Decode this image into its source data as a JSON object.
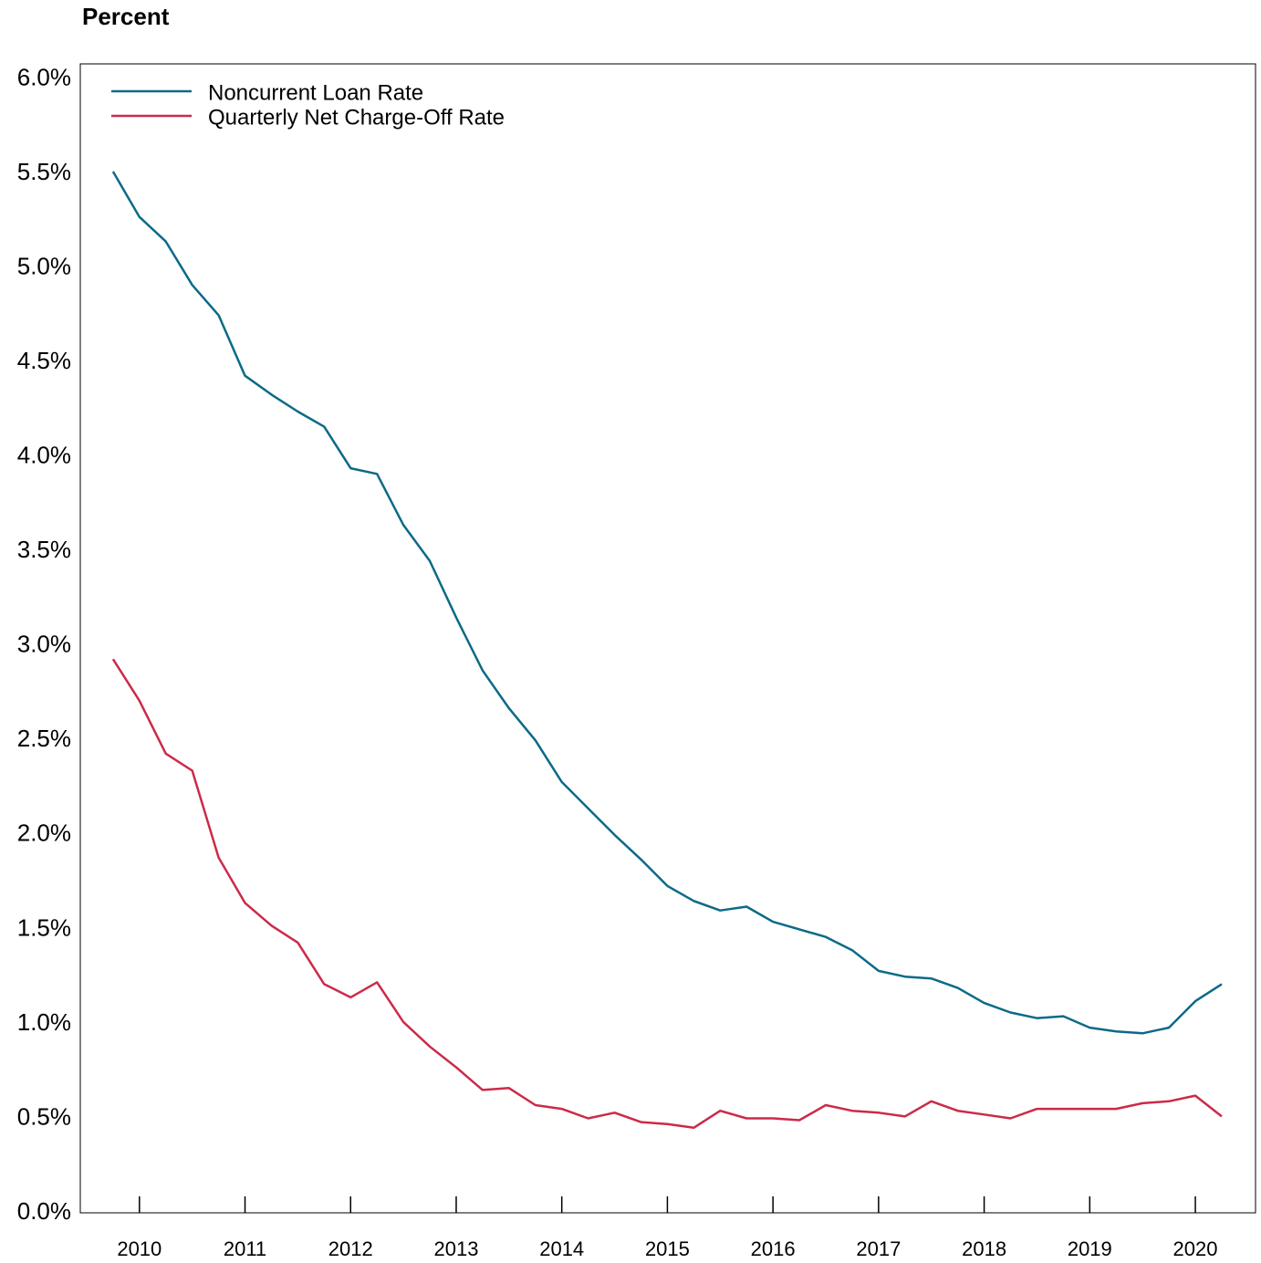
{
  "chart_data": {
    "type": "line",
    "title": "Percent",
    "x": [
      2009.75,
      2010,
      2010.25,
      2010.5,
      2010.75,
      2011,
      2011.25,
      2011.5,
      2011.75,
      2012,
      2012.25,
      2012.5,
      2012.75,
      2013,
      2013.25,
      2013.5,
      2013.75,
      2014,
      2014.25,
      2014.5,
      2014.75,
      2015,
      2015.25,
      2015.5,
      2015.75,
      2016,
      2016.25,
      2016.5,
      2016.75,
      2017,
      2017.25,
      2017.5,
      2017.75,
      2018,
      2018.25,
      2018.5,
      2018.75,
      2019,
      2019.25,
      2019.5,
      2019.75,
      2020,
      2020.25
    ],
    "series": [
      {
        "name": "Noncurrent Loan Rate",
        "color": "#0b6a87",
        "values": [
          5.51,
          5.27,
          5.14,
          4.91,
          4.75,
          4.43,
          4.33,
          4.24,
          4.16,
          3.94,
          3.91,
          3.64,
          3.45,
          3.15,
          2.87,
          2.67,
          2.5,
          2.28,
          2.14,
          2.0,
          1.87,
          1.73,
          1.65,
          1.6,
          1.62,
          1.54,
          1.5,
          1.46,
          1.39,
          1.28,
          1.25,
          1.24,
          1.19,
          1.11,
          1.06,
          1.03,
          1.04,
          0.98,
          0.96,
          0.95,
          0.98,
          1.12,
          1.21
        ]
      },
      {
        "name": "Quarterly Net Charge-Off Rate",
        "color": "#cc2a49",
        "values": [
          2.93,
          2.71,
          2.43,
          2.34,
          1.88,
          1.64,
          1.52,
          1.43,
          1.21,
          1.14,
          1.22,
          1.01,
          0.88,
          0.77,
          0.65,
          0.66,
          0.57,
          0.55,
          0.5,
          0.53,
          0.48,
          0.47,
          0.45,
          0.54,
          0.5,
          0.5,
          0.49,
          0.57,
          0.54,
          0.53,
          0.51,
          0.59,
          0.54,
          0.52,
          0.5,
          0.55,
          0.55,
          0.55,
          0.55,
          0.58,
          0.59,
          0.62,
          0.51
        ]
      }
    ],
    "xlim": [
      2009.44,
      2020.57
    ],
    "xticks": [
      2010,
      2011,
      2012,
      2013,
      2014,
      2015,
      2016,
      2017,
      2018,
      2019,
      2020
    ],
    "ylim": [
      0,
      6.08
    ],
    "yticks": [
      {
        "value": 0,
        "label": "0.0%"
      },
      {
        "value": 0.5,
        "label": "0.5%"
      },
      {
        "value": 1,
        "label": "1.0%"
      },
      {
        "value": 1.5,
        "label": "1.5%"
      },
      {
        "value": 2,
        "label": "2.0%"
      },
      {
        "value": 2.5,
        "label": "2.5%"
      },
      {
        "value": 3,
        "label": "3.0%"
      },
      {
        "value": 3.5,
        "label": "3.5%"
      },
      {
        "value": 4,
        "label": "4.0%"
      },
      {
        "value": 4.5,
        "label": "4.5%"
      },
      {
        "value": 5,
        "label": "5.0%"
      },
      {
        "value": 5.5,
        "label": "5.5%"
      },
      {
        "value": 6,
        "label": "6.0%"
      }
    ],
    "grid": false,
    "legend": "upper left"
  }
}
